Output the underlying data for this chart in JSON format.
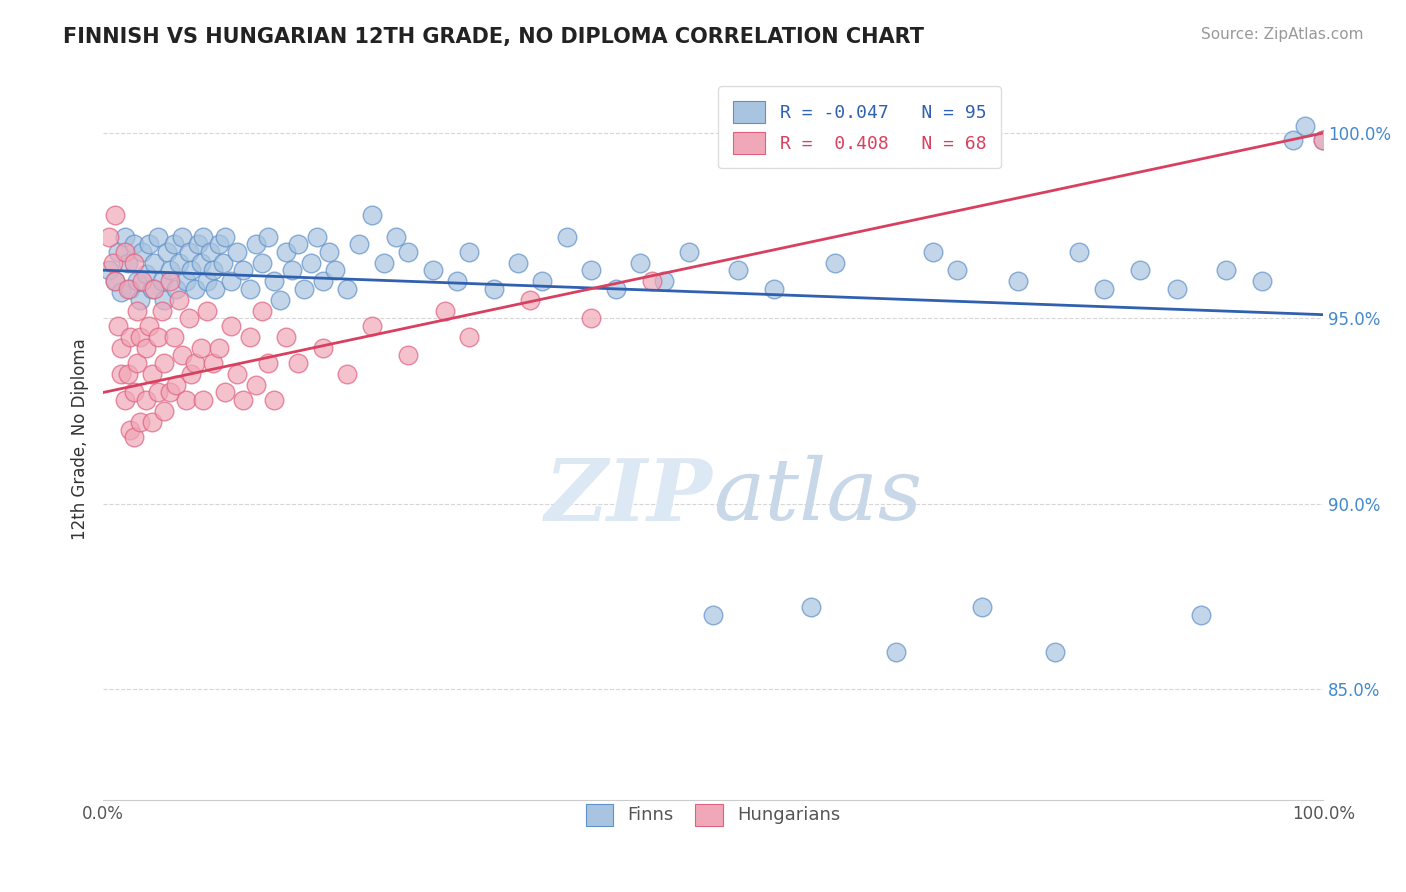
{
  "title": "FINNISH VS HUNGARIAN 12TH GRADE, NO DIPLOMA CORRELATION CHART",
  "source": "Source: ZipAtlas.com",
  "ylabel": "12th Grade, No Diploma",
  "yticks": [
    "85.0%",
    "90.0%",
    "95.0%",
    "100.0%"
  ],
  "ytick_vals": [
    0.85,
    0.9,
    0.95,
    1.0
  ],
  "finn_R": -0.047,
  "finn_N": 95,
  "hung_R": 0.408,
  "hung_N": 68,
  "blue_color": "#a8c4e0",
  "pink_color": "#f0a8b8",
  "blue_edge_color": "#6090c8",
  "pink_edge_color": "#e06080",
  "blue_line_color": "#3060b0",
  "pink_line_color": "#d84060",
  "watermark_color": "#dce8f4",
  "blue_line_start_y": 0.963,
  "blue_line_end_y": 0.951,
  "pink_line_start_y": 0.93,
  "pink_line_end_y": 1.0,
  "xlim": [
    0.0,
    1.0
  ],
  "ylim": [
    0.82,
    1.015
  ],
  "blue_scatter": [
    [
      0.005,
      0.963
    ],
    [
      0.01,
      0.96
    ],
    [
      0.012,
      0.968
    ],
    [
      0.015,
      0.957
    ],
    [
      0.018,
      0.972
    ],
    [
      0.02,
      0.965
    ],
    [
      0.022,
      0.958
    ],
    [
      0.025,
      0.97
    ],
    [
      0.028,
      0.96
    ],
    [
      0.03,
      0.955
    ],
    [
      0.032,
      0.968
    ],
    [
      0.035,
      0.962
    ],
    [
      0.038,
      0.97
    ],
    [
      0.04,
      0.958
    ],
    [
      0.042,
      0.965
    ],
    [
      0.045,
      0.972
    ],
    [
      0.048,
      0.96
    ],
    [
      0.05,
      0.955
    ],
    [
      0.052,
      0.968
    ],
    [
      0.055,
      0.963
    ],
    [
      0.058,
      0.97
    ],
    [
      0.06,
      0.958
    ],
    [
      0.062,
      0.965
    ],
    [
      0.065,
      0.972
    ],
    [
      0.068,
      0.96
    ],
    [
      0.07,
      0.968
    ],
    [
      0.072,
      0.963
    ],
    [
      0.075,
      0.958
    ],
    [
      0.078,
      0.97
    ],
    [
      0.08,
      0.965
    ],
    [
      0.082,
      0.972
    ],
    [
      0.085,
      0.96
    ],
    [
      0.088,
      0.968
    ],
    [
      0.09,
      0.963
    ],
    [
      0.092,
      0.958
    ],
    [
      0.095,
      0.97
    ],
    [
      0.098,
      0.965
    ],
    [
      0.1,
      0.972
    ],
    [
      0.105,
      0.96
    ],
    [
      0.11,
      0.968
    ],
    [
      0.115,
      0.963
    ],
    [
      0.12,
      0.958
    ],
    [
      0.125,
      0.97
    ],
    [
      0.13,
      0.965
    ],
    [
      0.135,
      0.972
    ],
    [
      0.14,
      0.96
    ],
    [
      0.145,
      0.955
    ],
    [
      0.15,
      0.968
    ],
    [
      0.155,
      0.963
    ],
    [
      0.16,
      0.97
    ],
    [
      0.165,
      0.958
    ],
    [
      0.17,
      0.965
    ],
    [
      0.175,
      0.972
    ],
    [
      0.18,
      0.96
    ],
    [
      0.185,
      0.968
    ],
    [
      0.19,
      0.963
    ],
    [
      0.2,
      0.958
    ],
    [
      0.21,
      0.97
    ],
    [
      0.22,
      0.978
    ],
    [
      0.23,
      0.965
    ],
    [
      0.24,
      0.972
    ],
    [
      0.25,
      0.968
    ],
    [
      0.27,
      0.963
    ],
    [
      0.29,
      0.96
    ],
    [
      0.3,
      0.968
    ],
    [
      0.32,
      0.958
    ],
    [
      0.34,
      0.965
    ],
    [
      0.36,
      0.96
    ],
    [
      0.38,
      0.972
    ],
    [
      0.4,
      0.963
    ],
    [
      0.42,
      0.958
    ],
    [
      0.44,
      0.965
    ],
    [
      0.46,
      0.96
    ],
    [
      0.48,
      0.968
    ],
    [
      0.5,
      0.87
    ],
    [
      0.52,
      0.963
    ],
    [
      0.55,
      0.958
    ],
    [
      0.58,
      0.872
    ],
    [
      0.6,
      0.965
    ],
    [
      0.65,
      0.86
    ],
    [
      0.68,
      0.968
    ],
    [
      0.7,
      0.963
    ],
    [
      0.72,
      0.872
    ],
    [
      0.75,
      0.96
    ],
    [
      0.78,
      0.86
    ],
    [
      0.8,
      0.968
    ],
    [
      0.82,
      0.958
    ],
    [
      0.85,
      0.963
    ],
    [
      0.88,
      0.958
    ],
    [
      0.9,
      0.87
    ],
    [
      0.92,
      0.963
    ],
    [
      0.95,
      0.96
    ],
    [
      0.975,
      0.998
    ],
    [
      0.985,
      1.002
    ],
    [
      1.0,
      0.998
    ]
  ],
  "hung_scatter": [
    [
      0.005,
      0.972
    ],
    [
      0.008,
      0.965
    ],
    [
      0.01,
      0.978
    ],
    [
      0.01,
      0.96
    ],
    [
      0.012,
      0.948
    ],
    [
      0.015,
      0.942
    ],
    [
      0.015,
      0.935
    ],
    [
      0.018,
      0.968
    ],
    [
      0.018,
      0.928
    ],
    [
      0.02,
      0.958
    ],
    [
      0.02,
      0.935
    ],
    [
      0.022,
      0.945
    ],
    [
      0.022,
      0.92
    ],
    [
      0.025,
      0.965
    ],
    [
      0.025,
      0.93
    ],
    [
      0.025,
      0.918
    ],
    [
      0.028,
      0.952
    ],
    [
      0.028,
      0.938
    ],
    [
      0.03,
      0.945
    ],
    [
      0.03,
      0.922
    ],
    [
      0.032,
      0.96
    ],
    [
      0.035,
      0.942
    ],
    [
      0.035,
      0.928
    ],
    [
      0.038,
      0.948
    ],
    [
      0.04,
      0.935
    ],
    [
      0.04,
      0.922
    ],
    [
      0.042,
      0.958
    ],
    [
      0.045,
      0.945
    ],
    [
      0.045,
      0.93
    ],
    [
      0.048,
      0.952
    ],
    [
      0.05,
      0.938
    ],
    [
      0.05,
      0.925
    ],
    [
      0.055,
      0.96
    ],
    [
      0.055,
      0.93
    ],
    [
      0.058,
      0.945
    ],
    [
      0.06,
      0.932
    ],
    [
      0.062,
      0.955
    ],
    [
      0.065,
      0.94
    ],
    [
      0.068,
      0.928
    ],
    [
      0.07,
      0.95
    ],
    [
      0.072,
      0.935
    ],
    [
      0.075,
      0.938
    ],
    [
      0.08,
      0.942
    ],
    [
      0.082,
      0.928
    ],
    [
      0.085,
      0.952
    ],
    [
      0.09,
      0.938
    ],
    [
      0.095,
      0.942
    ],
    [
      0.1,
      0.93
    ],
    [
      0.105,
      0.948
    ],
    [
      0.11,
      0.935
    ],
    [
      0.115,
      0.928
    ],
    [
      0.12,
      0.945
    ],
    [
      0.125,
      0.932
    ],
    [
      0.13,
      0.952
    ],
    [
      0.135,
      0.938
    ],
    [
      0.14,
      0.928
    ],
    [
      0.15,
      0.945
    ],
    [
      0.16,
      0.938
    ],
    [
      0.18,
      0.942
    ],
    [
      0.2,
      0.935
    ],
    [
      0.22,
      0.948
    ],
    [
      0.25,
      0.94
    ],
    [
      0.28,
      0.952
    ],
    [
      0.3,
      0.945
    ],
    [
      0.35,
      0.955
    ],
    [
      0.4,
      0.95
    ],
    [
      0.45,
      0.96
    ],
    [
      1.0,
      0.998
    ]
  ]
}
